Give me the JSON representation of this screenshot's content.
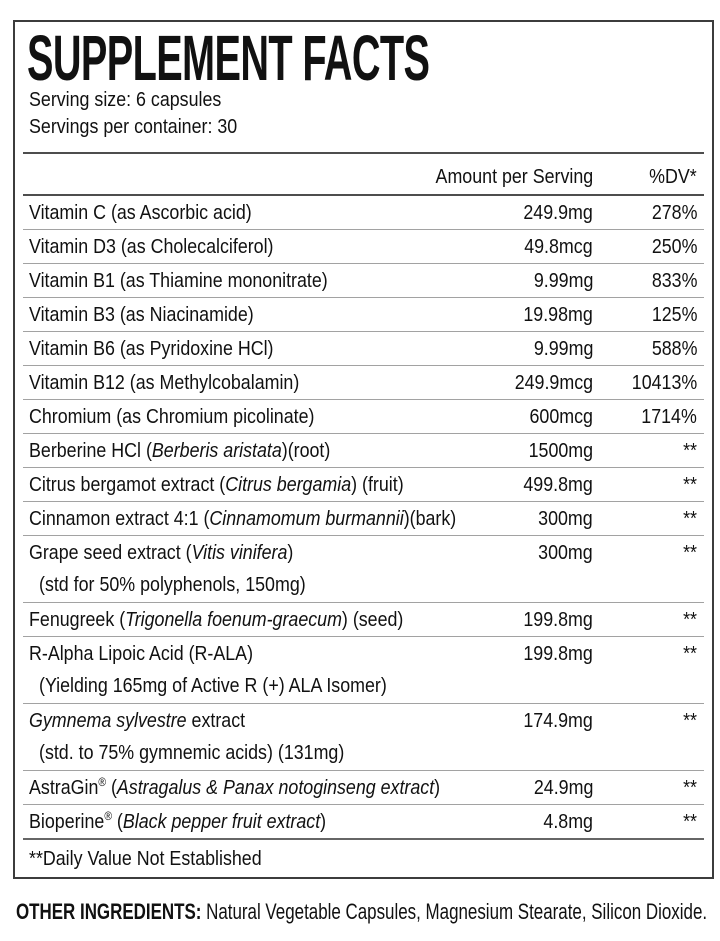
{
  "panel": {
    "title": "SUPPLEMENT FACTS",
    "serving_size": "Serving size: 6 capsules",
    "servings_per_container": "Servings per container: 30",
    "columns": {
      "amount": "Amount per Serving",
      "dv": "%DV*"
    },
    "rows": [
      {
        "parts": [
          {
            "t": "Vitamin C (as Ascorbic acid)"
          }
        ],
        "amount": "249.9mg",
        "dv": "278%"
      },
      {
        "parts": [
          {
            "t": "Vitamin D3 (as Cholecalciferol)"
          }
        ],
        "amount": "49.8mcg",
        "dv": "250%"
      },
      {
        "parts": [
          {
            "t": "Vitamin B1 (as Thiamine mononitrate)"
          }
        ],
        "amount": "9.99mg",
        "dv": "833%"
      },
      {
        "parts": [
          {
            "t": "Vitamin B3 (as Niacinamide)"
          }
        ],
        "amount": "19.98mg",
        "dv": "125%"
      },
      {
        "parts": [
          {
            "t": "Vitamin B6 (as Pyridoxine HCl)"
          }
        ],
        "amount": "9.99mg",
        "dv": "588%"
      },
      {
        "parts": [
          {
            "t": "Vitamin B12 (as Methylcobalamin)"
          }
        ],
        "amount": "249.9mcg",
        "dv": "10413%"
      },
      {
        "parts": [
          {
            "t": "Chromium (as Chromium picolinate)"
          }
        ],
        "amount": "600mcg",
        "dv": "1714%"
      },
      {
        "parts": [
          {
            "t": "Berberine HCl ("
          },
          {
            "t": "Berberis aristata",
            "i": true
          },
          {
            "t": ")(root)"
          }
        ],
        "amount": "1500mg",
        "dv": "**"
      },
      {
        "parts": [
          {
            "t": "Citrus bergamot extract ("
          },
          {
            "t": "Citrus bergamia",
            "i": true
          },
          {
            "t": ") (fruit)"
          }
        ],
        "amount": "499.8mg",
        "dv": "**"
      },
      {
        "parts": [
          {
            "t": "Cinnamon extract 4:1 ("
          },
          {
            "t": "Cinnamomum burmannii",
            "i": true
          },
          {
            "t": ")(bark)"
          }
        ],
        "amount": "300mg",
        "dv": "**"
      },
      {
        "parts": [
          {
            "t": "Grape seed extract ("
          },
          {
            "t": "Vitis vinifera",
            "i": true
          },
          {
            "t": ")"
          }
        ],
        "sub": "(std for 50% polyphenols, 150mg)",
        "amount": "300mg",
        "dv": "**"
      },
      {
        "parts": [
          {
            "t": "Fenugreek ("
          },
          {
            "t": "Trigonella foenum-graecum",
            "i": true
          },
          {
            "t": ") (seed)"
          }
        ],
        "amount": "199.8mg",
        "dv": "**"
      },
      {
        "parts": [
          {
            "t": "R-Alpha Lipoic Acid (R-ALA)"
          }
        ],
        "sub": "(Yielding 165mg of Active R (+) ALA Isomer)",
        "amount": "199.8mg",
        "dv": "**"
      },
      {
        "parts": [
          {
            "t": "Gymnema sylvestre",
            "i": true
          },
          {
            "t": " extract"
          }
        ],
        "sub": "(std. to 75% gymnemic acids) (131mg)",
        "amount": "174.9mg",
        "dv": "**"
      },
      {
        "parts": [
          {
            "t": "AstraGin"
          },
          {
            "t": "®",
            "sup": true
          },
          {
            "t": " ("
          },
          {
            "t": "Astragalus & Panax notoginseng extract",
            "i": true
          },
          {
            "t": ")"
          }
        ],
        "amount": "24.9mg",
        "dv": "**"
      },
      {
        "parts": [
          {
            "t": "Bioperine"
          },
          {
            "t": "®",
            "sup": true
          },
          {
            "t": " ("
          },
          {
            "t": "Black pepper fruit extract",
            "i": true
          },
          {
            "t": ")"
          }
        ],
        "amount": "4.8mg",
        "dv": "**"
      }
    ],
    "footnote": "**Daily Value Not Established",
    "other_ingredients": {
      "label": "OTHER INGREDIENTS:",
      "text": " Natural Vegetable Capsules, Magnesium Stearate, Silicon Dioxide."
    }
  },
  "colors": {
    "text": "#111111",
    "panel_border": "#3c3c3c",
    "header_line": "#4d4d4d",
    "row_line": "#a2a2a2",
    "footnote_line": "#666666",
    "background": "#ffffff"
  }
}
